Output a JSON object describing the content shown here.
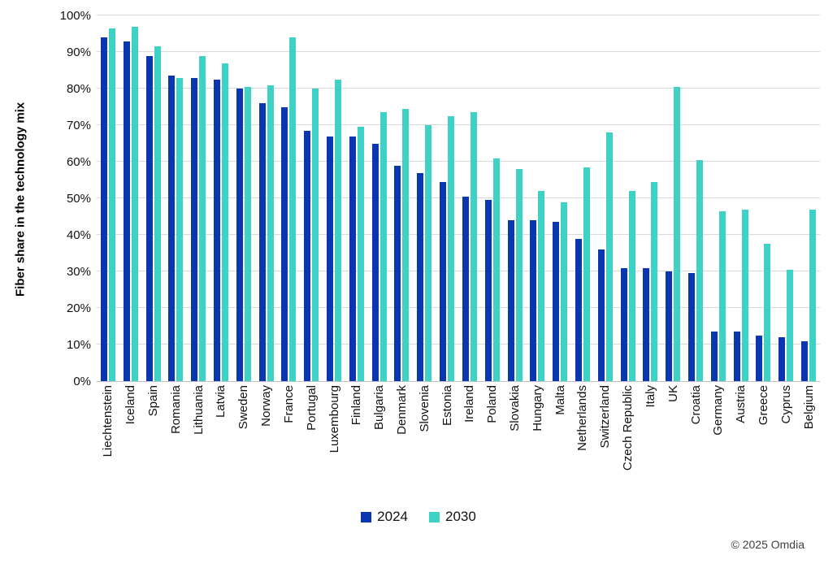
{
  "chart_data": {
    "type": "bar",
    "title": "",
    "ylabel": "Fiber share in the technology mix",
    "xlabel": "",
    "ylim": [
      0,
      100
    ],
    "ytick_labels": [
      "0%",
      "10%",
      "20%",
      "30%",
      "40%",
      "50%",
      "60%",
      "70%",
      "80%",
      "90%",
      "100%"
    ],
    "grid": "horizontal",
    "legend_position": "bottom-center",
    "categories": [
      "Liechtenstein",
      "Iceland",
      "Spain",
      "Romania",
      "Lithuania",
      "Latvia",
      "Sweden",
      "Norway",
      "France",
      "Portugal",
      "Luxembourg",
      "Finland",
      "Bulgaria",
      "Denmark",
      "Slovenia",
      "Estonia",
      "Ireland",
      "Poland",
      "Slovakia",
      "Hungary",
      "Malta",
      "Netherlands",
      "Switzerland",
      "Czech Republic",
      "Italy",
      "UK",
      "Croatia",
      "Germany",
      "Austria",
      "Greece",
      "Cyprus",
      "Belgium"
    ],
    "series": [
      {
        "name": "2024",
        "color": "#0a37b0",
        "values": [
          94,
          93,
          89,
          83.5,
          83,
          82.5,
          80,
          76,
          75,
          68.5,
          67,
          67,
          65,
          59,
          57,
          54.5,
          50.5,
          49.5,
          44,
          44,
          43.5,
          39,
          36,
          31,
          31,
          30,
          29.5,
          13.5,
          13.5,
          12.5,
          12,
          11
        ]
      },
      {
        "name": "2030",
        "color": "#3ed2c6",
        "values": [
          96.5,
          97,
          91.5,
          83,
          89,
          87,
          80.5,
          81,
          94,
          80,
          82.5,
          69.5,
          73.5,
          74.5,
          70,
          72.5,
          73.5,
          61,
          58,
          52,
          49,
          58.5,
          68,
          52,
          54.5,
          80.5,
          60.5,
          46.5,
          47,
          37.5,
          30.5,
          47
        ]
      }
    ]
  },
  "colors": {
    "gridline": "#d9d9d9",
    "axis_line": "#bfbfbf",
    "background": "#ffffff",
    "text": "#111111"
  },
  "footer": {
    "copyright": "© 2025 Omdia"
  }
}
